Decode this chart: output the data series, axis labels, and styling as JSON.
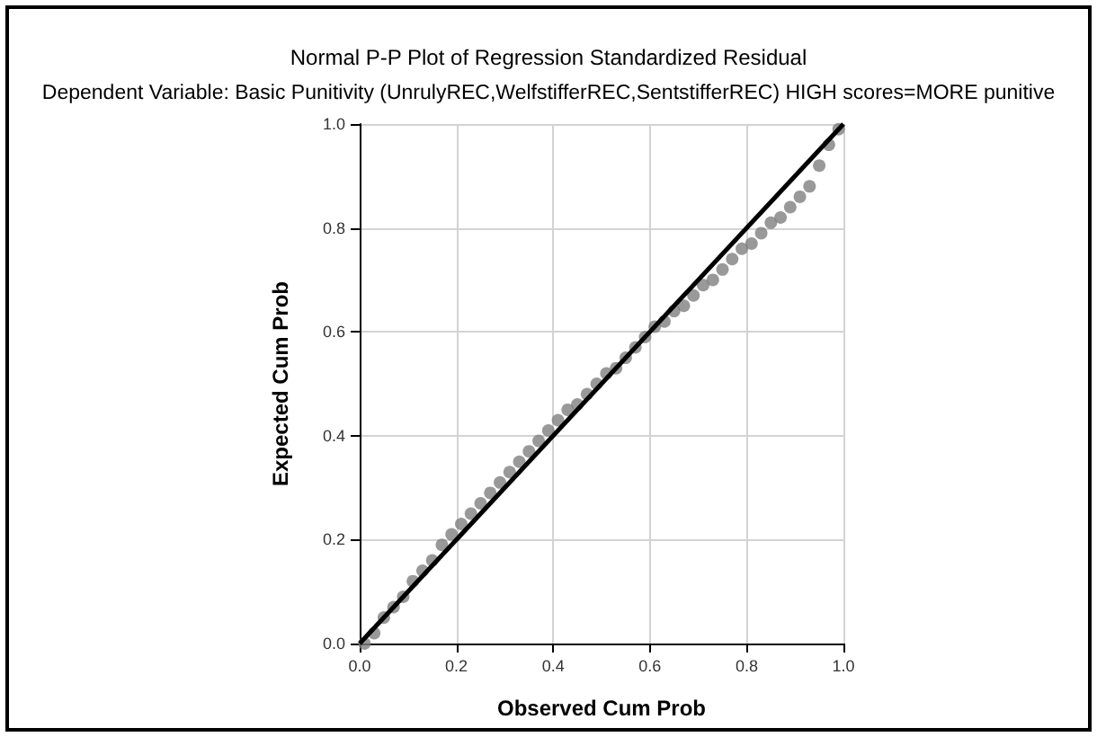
{
  "chart_data": {
    "type": "scatter",
    "title": "Normal P-P Plot of Regression Standardized Residual",
    "subtitle": "Dependent Variable: Basic Punitivity (UnrulyREC,WelfstifferREC,SentstifferREC) HIGH scores=MORE punitive",
    "xlabel": "Observed Cum Prob",
    "ylabel": "Expected Cum Prob",
    "xlim": [
      0,
      1
    ],
    "ylim": [
      0,
      1
    ],
    "xticks": [
      {
        "value": 0,
        "label": "0.0"
      },
      {
        "value": 0.2,
        "label": "0.2"
      },
      {
        "value": 0.4,
        "label": "0.4"
      },
      {
        "value": 0.6,
        "label": "0.6"
      },
      {
        "value": 0.8,
        "label": "0.8"
      },
      {
        "value": 1,
        "label": "1.0"
      }
    ],
    "yticks": [
      {
        "value": 0,
        "label": "0.0"
      },
      {
        "value": 0.2,
        "label": "0.2"
      },
      {
        "value": 0.4,
        "label": "0.4"
      },
      {
        "value": 0.6,
        "label": "0.6"
      },
      {
        "value": 0.8,
        "label": "0.8"
      },
      {
        "value": 1,
        "label": "1.0"
      }
    ],
    "grid": true,
    "marker": "circle",
    "series": [
      {
        "color": "#808080",
        "x": [
          0.01,
          0.03,
          0.05,
          0.07,
          0.09,
          0.11,
          0.13,
          0.15,
          0.17,
          0.19,
          0.21,
          0.23,
          0.25,
          0.27,
          0.29,
          0.31,
          0.33,
          0.35,
          0.37,
          0.39,
          0.41,
          0.43,
          0.45,
          0.47,
          0.49,
          0.51,
          0.53,
          0.55,
          0.57,
          0.59,
          0.61,
          0.63,
          0.65,
          0.67,
          0.69,
          0.71,
          0.73,
          0.75,
          0.77,
          0.79,
          0.81,
          0.83,
          0.85,
          0.87,
          0.89,
          0.91,
          0.93,
          0.95,
          0.97,
          0.99
        ],
        "values": [
          0.0,
          0.02,
          0.05,
          0.07,
          0.09,
          0.12,
          0.14,
          0.16,
          0.19,
          0.21,
          0.23,
          0.25,
          0.27,
          0.29,
          0.31,
          0.33,
          0.35,
          0.37,
          0.39,
          0.41,
          0.43,
          0.45,
          0.46,
          0.48,
          0.5,
          0.52,
          0.53,
          0.55,
          0.57,
          0.59,
          0.61,
          0.62,
          0.64,
          0.65,
          0.67,
          0.69,
          0.7,
          0.72,
          0.74,
          0.76,
          0.77,
          0.79,
          0.81,
          0.82,
          0.84,
          0.86,
          0.88,
          0.92,
          0.96,
          0.99
        ]
      },
      {
        "type": "line",
        "color": "#000000",
        "marker": "none",
        "x": [
          0,
          1
        ],
        "values": [
          0,
          1
        ]
      }
    ]
  }
}
